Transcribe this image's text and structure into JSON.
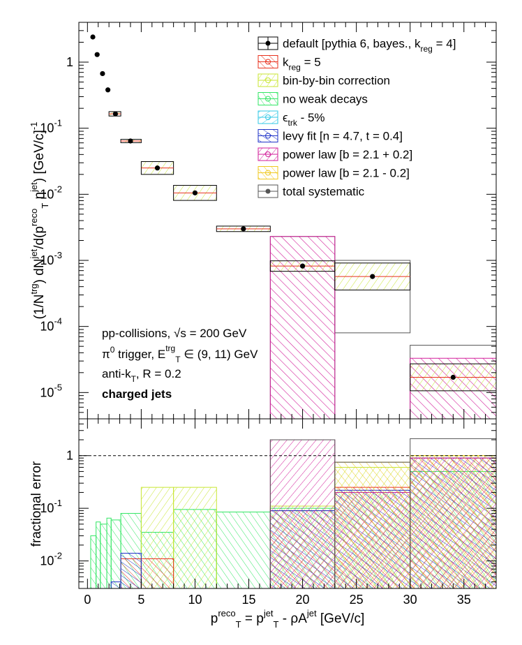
{
  "chart_data": [
    {
      "type": "scatter",
      "panel": "top",
      "ylabel_html": "(1/N<sup>trg</sup>) dN<sup>jet</sup>/d(p<sub>T</sub><sup>reco</sup> η<sup>jet</sup>) [GeV/c]<sup>-1</sup>",
      "ylabel_parts": [
        "(1/N",
        "trg",
        ") dN",
        "jet",
        "/d(p",
        "reco",
        "T",
        " η",
        "jet",
        ") [GeV/c]",
        "-1"
      ],
      "yscale": "log",
      "xlim": [
        -0.8,
        38
      ],
      "ylim": [
        4e-06,
        4
      ],
      "x_ticks": [
        0,
        5,
        10,
        15,
        20,
        25,
        30,
        35
      ],
      "y_ticks": [
        {
          "value": 1,
          "label": "1"
        },
        {
          "value": 0.1,
          "label": "10",
          "exp": "-1"
        },
        {
          "value": 0.01,
          "label": "10",
          "exp": "-2"
        },
        {
          "value": 0.001,
          "label": "10",
          "exp": "-3"
        },
        {
          "value": 0.0001,
          "label": "10",
          "exp": "-4"
        },
        {
          "value": 1e-05,
          "label": "10",
          "exp": "-5"
        }
      ],
      "points": [
        {
          "x": 0.5,
          "y": 2.4,
          "x_lo": 0.5,
          "x_hi": 0.5,
          "sys": 1.05
        },
        {
          "x": 0.9,
          "y": 1.3,
          "x_lo": 0.9,
          "x_hi": 0.9,
          "sys": 1.05
        },
        {
          "x": 1.4,
          "y": 0.67,
          "x_lo": 1.4,
          "x_hi": 1.4,
          "sys": 1.05
        },
        {
          "x": 1.9,
          "y": 0.38,
          "x_lo": 1.9,
          "x_hi": 1.9,
          "sys": 1.05
        },
        {
          "x": 2.6,
          "y": 0.165,
          "x_lo": 2.0,
          "x_hi": 3.1,
          "sys": 1.08
        },
        {
          "x": 4.0,
          "y": 0.064,
          "x_lo": 3.1,
          "x_hi": 5.0,
          "sys": 1.06
        },
        {
          "x": 6.5,
          "y": 0.025,
          "x_lo": 5.0,
          "x_hi": 8.0,
          "sys": 1.25
        },
        {
          "x": 10.0,
          "y": 0.0105,
          "x_lo": 8.0,
          "x_hi": 12.0,
          "sys": 1.3
        },
        {
          "x": 14.5,
          "y": 0.003,
          "x_lo": 12.0,
          "x_hi": 17.0,
          "sys": 1.1
        },
        {
          "x": 20.0,
          "y": 0.00082,
          "x_lo": 17.0,
          "x_hi": 23.0,
          "sys": 1.2
        },
        {
          "x": 26.5,
          "y": 0.00057,
          "x_lo": 23.0,
          "x_hi": 30.0,
          "sys": 1.6
        },
        {
          "x": 34.0,
          "y": 1.7e-05,
          "x_lo": 30.0,
          "x_hi": 38.0,
          "sys": 1.6
        }
      ],
      "total_systematic_boxes": [
        {
          "x0": 17.0,
          "x1": 23.0,
          "y0": 3.5e-06,
          "y1": 0.0023
        },
        {
          "x0": 23.0,
          "x1": 30.0,
          "y0": 8e-05,
          "y1": 0.001
        },
        {
          "x0": 30.0,
          "x1": 38.0,
          "y0": 3.5e-06,
          "y1": 5.2e-05
        }
      ],
      "power_law_boxes": [
        {
          "x0": 17.0,
          "x1": 23.0,
          "y0": 3.5e-06,
          "y1": 0.0023
        },
        {
          "x0": 30.0,
          "x1": 38.0,
          "y0": 3.5e-06,
          "y1": 3.3e-05
        }
      ],
      "annotations": {
        "line1": "pp-collisions, ",
        "line1_sqrt": "√s",
        "line1_tail": " = 200 GeV",
        "line2_a": "π",
        "line2_b": "0",
        "line2_c": " trigger, E",
        "line2_d": "trg",
        "line2_e": "T",
        "line2_f": " ∈ (9, 11) GeV",
        "line3_a": "anti-k",
        "line3_b": "T",
        "line3_c": ", R = 0.2",
        "line4": "charged jets"
      },
      "legend": {
        "placement": "top-right",
        "entries": [
          {
            "label": "default [pythia 6, bayes., k",
            "sub": "reg",
            "tail": " = 4]",
            "color": "#000000",
            "kind": "default"
          },
          {
            "label": "k",
            "sub": "reg",
            "tail": " = 5",
            "color": "#e8321e",
            "kind": "hatch"
          },
          {
            "label": "bin-by-bin correction",
            "sub": "",
            "tail": "",
            "color": "#c8e632",
            "kind": "hatch"
          },
          {
            "label": "no weak decays",
            "sub": "",
            "tail": "",
            "color": "#32e664",
            "kind": "hatch"
          },
          {
            "label": "ϵ",
            "sub": "trk",
            "tail": " - 5%",
            "color": "#32c8e6",
            "kind": "hatch"
          },
          {
            "label": "levy fit [n = 4.7, t = 0.4]",
            "sub": "",
            "tail": "",
            "color": "#1e32c8",
            "kind": "hatch"
          },
          {
            "label": "power law [b = 2.1 + 0.2]",
            "sub": "",
            "tail": "",
            "color": "#d21e9a",
            "kind": "hatch"
          },
          {
            "label": "power law [b = 2.1 - 0.2]",
            "sub": "",
            "tail": "",
            "color": "#f0c81e",
            "kind": "hatch"
          },
          {
            "label": "total systematic",
            "sub": "",
            "tail": "",
            "color": "#555555",
            "kind": "total"
          }
        ]
      }
    },
    {
      "type": "area",
      "panel": "bottom",
      "ylabel": "fractional error",
      "yscale": "log",
      "xlim": [
        -0.8,
        38
      ],
      "ylim": [
        0.003,
        5
      ],
      "x_ticks": [
        0,
        5,
        10,
        15,
        20,
        25,
        30,
        35
      ],
      "y_ticks": [
        {
          "value": 1,
          "label": "1"
        },
        {
          "value": 0.1,
          "label": "10",
          "exp": "-1"
        },
        {
          "value": 0.01,
          "label": "10",
          "exp": "-2"
        }
      ],
      "reference_line": 1,
      "xlabel_parts": [
        "p",
        "reco",
        "T",
        " = p",
        "jet",
        "T",
        " - ρA",
        "jet",
        " [GeV/c]"
      ],
      "series": [
        {
          "name": "no weak decays",
          "color": "#32e664",
          "bins": [
            [
              0.3,
              0.8,
              0.03
            ],
            [
              0.8,
              1.2,
              0.055
            ],
            [
              1.2,
              1.8,
              0.05
            ],
            [
              1.8,
              2.2,
              0.065
            ],
            [
              2.2,
              3.1,
              0.06
            ],
            [
              3.1,
              5.0,
              0.08
            ],
            [
              5.0,
              8.0,
              0.035
            ],
            [
              8.0,
              12.0,
              0.095
            ],
            [
              12.0,
              17.0,
              0.085
            ],
            [
              17.0,
              23.0,
              0.1
            ],
            [
              23.0,
              30.0,
              0.2
            ],
            [
              30.0,
              38.0,
              0.5
            ]
          ]
        },
        {
          "name": "bin-by-bin correction",
          "color": "#c8e632",
          "bins": [
            [
              5.0,
              8.0,
              0.25
            ],
            [
              8.0,
              12.0,
              0.25
            ],
            [
              17.0,
              23.0,
              0.11
            ],
            [
              23.0,
              30.0,
              0.6
            ],
            [
              30.0,
              38.0,
              1.0
            ]
          ]
        },
        {
          "name": "k_reg = 5",
          "color": "#e8321e",
          "bins": [
            [
              3.1,
              5.0,
              0.011
            ],
            [
              5.0,
              8.0,
              0.011
            ],
            [
              17.0,
              23.0,
              0.09
            ],
            [
              23.0,
              30.0,
              0.25
            ],
            [
              30.0,
              38.0,
              0.9
            ]
          ]
        },
        {
          "name": "levy fit",
          "color": "#1e32c8",
          "bins": [
            [
              2.2,
              3.1,
              0.004
            ],
            [
              3.1,
              5.0,
              0.014
            ],
            [
              17.0,
              23.0,
              0.09
            ],
            [
              23.0,
              30.0,
              0.22
            ],
            [
              30.0,
              38.0,
              0.9
            ]
          ]
        },
        {
          "name": "power law [b = 2.1 + 0.2]",
          "color": "#d21e9a",
          "bins": [
            [
              17.0,
              23.0,
              2.0
            ],
            [
              23.0,
              30.0,
              0.2
            ],
            [
              30.0,
              38.0,
              0.9
            ]
          ]
        },
        {
          "name": "power law [b = 2.1 - 0.2]",
          "color": "#f0c81e",
          "bins": [
            [
              23.0,
              30.0,
              0.75
            ],
            [
              30.0,
              38.0,
              1.0
            ]
          ]
        },
        {
          "name": "total systematic",
          "color": "#555555",
          "bins": [
            [
              17.0,
              23.0,
              2.0
            ],
            [
              23.0,
              30.0,
              0.75
            ],
            [
              30.0,
              38.0,
              2.1
            ]
          ]
        }
      ]
    }
  ]
}
